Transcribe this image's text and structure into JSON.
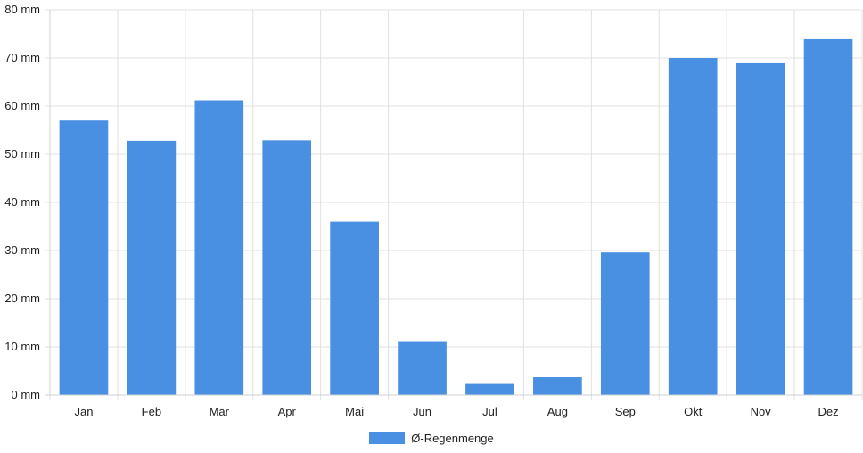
{
  "chart_data": {
    "type": "bar",
    "categories": [
      "Jan",
      "Feb",
      "Mär",
      "Apr",
      "Mai",
      "Jun",
      "Jul",
      "Aug",
      "Sep",
      "Okt",
      "Nov",
      "Dez"
    ],
    "series": [
      {
        "name": "Ø-Regenmenge",
        "values": [
          57,
          52.8,
          61.2,
          52.9,
          36,
          11.2,
          2.3,
          3.7,
          29.6,
          70,
          68.9,
          73.9
        ]
      }
    ],
    "y_ticks": [
      "0 mm",
      "10 mm",
      "20 mm",
      "30 mm",
      "40 mm",
      "50 mm",
      "60 mm",
      "70 mm",
      "80 mm"
    ],
    "ylim": [
      0,
      80
    ],
    "grid": true,
    "legend_position": "bottom",
    "colors": {
      "bar": "#4a90e2",
      "grid": "#e0e0e0",
      "axis": "#d0d0d0"
    }
  }
}
